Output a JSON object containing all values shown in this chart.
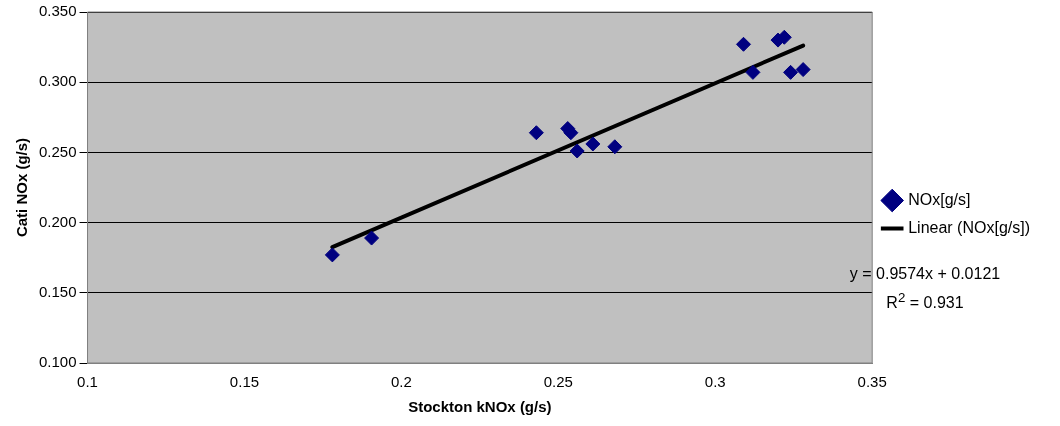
{
  "chart_data": {
    "type": "scatter",
    "xlabel": "Stockton kNOx (g/s)",
    "ylabel": "Cati NOx (g/s)",
    "xlim": [
      0.1,
      0.35
    ],
    "xticks": [
      0.1,
      0.15,
      0.2,
      0.25,
      0.3,
      0.35
    ],
    "ylim": [
      0.1,
      0.35
    ],
    "yticks": [
      {
        "value": 0.1,
        "label": "0.100"
      },
      {
        "value": 0.15,
        "label": "0.150"
      },
      {
        "value": 0.2,
        "label": "0.200"
      },
      {
        "value": 0.25,
        "label": "0.250"
      },
      {
        "value": 0.3,
        "label": "0.300"
      },
      {
        "value": 0.35,
        "label": "0.350"
      }
    ],
    "grid": "y",
    "legend": "right",
    "marker": "diamond",
    "series": [
      {
        "name": "NOx[g/s]",
        "color": "#000080",
        "x": [
          0.178,
          0.1905,
          0.243,
          0.253,
          0.254,
          0.256,
          0.261,
          0.268,
          0.309,
          0.312,
          0.32,
          0.322,
          0.324,
          0.328
        ],
        "values": [
          0.177,
          0.189,
          0.264,
          0.267,
          0.264,
          0.251,
          0.256,
          0.254,
          0.327,
          0.307,
          0.33,
          0.332,
          0.307,
          0.309
        ]
      },
      {
        "name": "Linear (NOx[g/s])",
        "type": "line",
        "color": "#000000",
        "marker": "none",
        "x": [
          0.178,
          0.328
        ],
        "values": [
          0.1825,
          0.3261
        ]
      }
    ],
    "annotations": [
      "y = 0.9574x + 0.0121",
      "R$^{2}$ = 0.931"
    ]
  }
}
